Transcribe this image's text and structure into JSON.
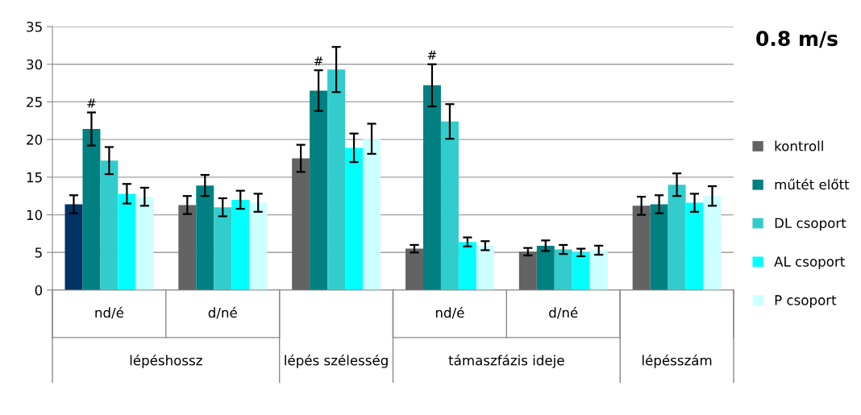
{
  "chart_data": {
    "type": "bar",
    "title": "0.8 m/s",
    "categories": [
      "nd/é",
      "d/né",
      null,
      "nd/é",
      "d/né",
      null
    ],
    "series": [
      {
        "name": "kontroll",
        "color": "#636363",
        "colors": [
          "#003366",
          "#636363",
          "#636363",
          "#636363",
          "#636363",
          "#636363"
        ],
        "values": [
          11.4,
          11.3,
          17.5,
          5.5,
          5.1,
          11.2
        ],
        "errors": [
          1.2,
          1.2,
          1.8,
          0.5,
          0.5,
          1.2
        ]
      },
      {
        "name": "műtét előtt",
        "color": "#008080",
        "values": [
          21.4,
          13.9,
          26.5,
          27.2,
          5.9,
          11.4
        ],
        "errors": [
          2.2,
          1.4,
          2.7,
          2.8,
          0.7,
          1.2
        ],
        "value_labels": [
          "#",
          null,
          "#",
          "#",
          null,
          null
        ]
      },
      {
        "name": "DL csoport",
        "color": "#33cccc",
        "values": [
          17.2,
          11.0,
          29.3,
          22.4,
          5.4,
          14.0
        ],
        "errors": [
          1.8,
          1.2,
          3.0,
          2.3,
          0.6,
          1.5
        ]
      },
      {
        "name": "AL csoport",
        "color": "#00ffff",
        "values": [
          12.8,
          12.0,
          18.9,
          6.4,
          5.0,
          11.6
        ],
        "errors": [
          1.3,
          1.2,
          1.9,
          0.6,
          0.5,
          1.2
        ]
      },
      {
        "name": "P csoport",
        "color": "#ccffff",
        "values": [
          12.4,
          11.6,
          20.1,
          5.9,
          5.3,
          12.5
        ],
        "errors": [
          1.2,
          1.2,
          2.0,
          0.6,
          0.6,
          1.3
        ]
      }
    ],
    "annotations": [
      "lépéshossz",
      "lépés szélesség",
      "támaszfázis ideje",
      "lépésszám"
    ],
    "ylim": [
      0,
      35
    ],
    "yticks": [
      0,
      5,
      10,
      15,
      20,
      25,
      30,
      35
    ],
    "grid": "y",
    "legend": "right"
  }
}
